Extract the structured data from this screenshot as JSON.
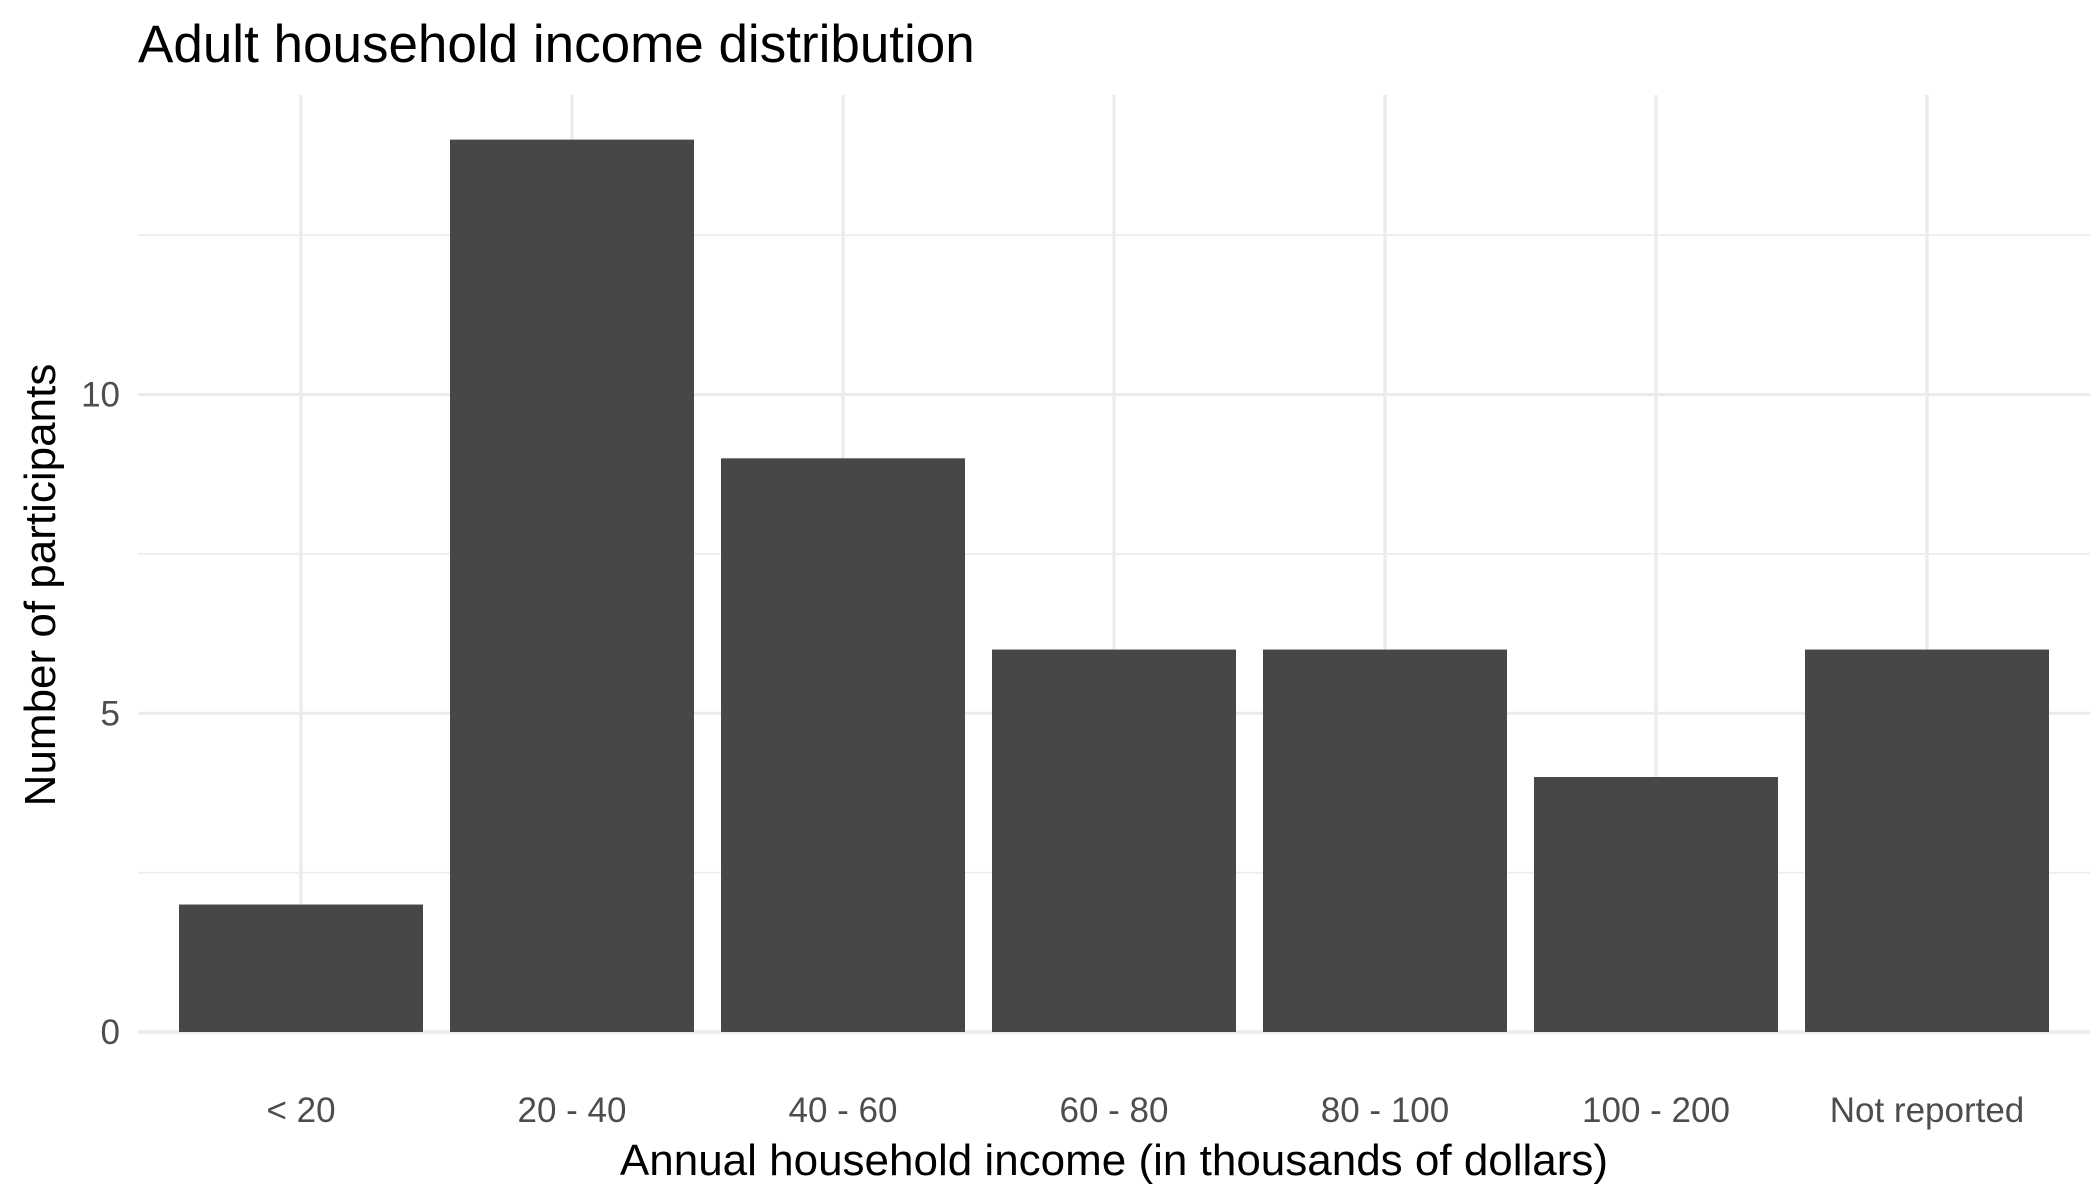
{
  "chart_data": {
    "type": "bar",
    "title": "Adult household income distribution",
    "xlabel": "Annual household income (in thousands of dollars)",
    "ylabel": "Number of participants",
    "categories": [
      "< 20",
      "20 - 40",
      "40 - 60",
      "60 - 80",
      "80 - 100",
      "100 - 200",
      "Not reported"
    ],
    "values": [
      2,
      14,
      9,
      6,
      6,
      4,
      6
    ],
    "ylim": [
      0,
      14.7
    ],
    "yticks": [
      "0",
      "5",
      "10"
    ],
    "ytick_values": [
      0,
      5,
      10
    ],
    "minor_ytick_values": [
      2.5,
      7.5,
      12.5
    ],
    "grid": true,
    "bar_color": "#474747",
    "grid_color": "#ebebeb",
    "legend": "none"
  }
}
